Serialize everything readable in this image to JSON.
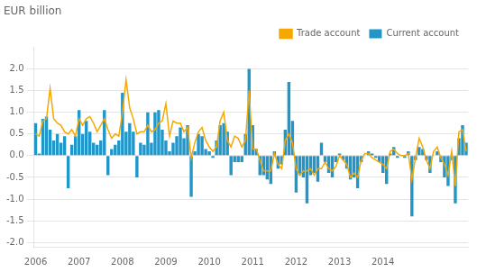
{
  "chart_data": {
    "type": "bar",
    "title": "EUR billion",
    "categories": [
      "2006",
      null,
      null,
      null,
      null,
      null,
      null,
      null,
      null,
      null,
      null,
      null,
      "2007",
      null,
      null,
      null,
      null,
      null,
      null,
      null,
      null,
      null,
      null,
      null,
      "2008",
      null,
      null,
      null,
      null,
      null,
      null,
      null,
      null,
      null,
      null,
      null,
      "2009",
      null,
      null,
      null,
      null,
      null,
      null,
      null,
      null,
      null,
      null,
      null,
      "2010",
      null,
      null,
      null,
      null,
      null,
      null,
      null,
      null,
      null,
      null,
      null,
      "2011",
      null,
      null,
      null,
      null,
      null,
      null,
      null,
      null,
      null,
      null,
      null,
      "2012",
      null,
      null,
      null,
      null,
      null,
      null,
      null,
      null,
      null,
      null,
      null,
      "2013",
      null,
      null,
      null,
      null,
      null,
      null,
      null,
      null,
      null,
      null,
      null,
      "2014",
      null,
      null,
      null,
      null,
      null,
      null,
      null,
      null,
      null,
      null,
      null,
      null,
      null,
      null,
      null,
      null,
      null,
      null,
      null,
      null,
      null,
      null,
      null
    ],
    "series": [
      {
        "name": "Current account",
        "type": "bar",
        "color": "#2196c8",
        "values": [
          0.75,
          0.05,
          0.85,
          0.9,
          0.6,
          0.35,
          0.5,
          0.3,
          0.45,
          -0.75,
          0.25,
          0.45,
          1.05,
          0.5,
          0.8,
          0.55,
          0.3,
          0.25,
          0.35,
          1.05,
          -0.45,
          0.15,
          0.25,
          0.35,
          1.45,
          0.55,
          0.75,
          0.55,
          -0.5,
          0.3,
          0.25,
          1.0,
          0.3,
          1.0,
          1.05,
          0.6,
          0.35,
          0.1,
          0.3,
          0.45,
          0.65,
          0.4,
          0.7,
          -0.95,
          0.1,
          0.5,
          0.45,
          0.15,
          0.1,
          -0.05,
          0.35,
          0.7,
          0.75,
          0.55,
          -0.45,
          -0.15,
          -0.15,
          -0.15,
          0.5,
          2.0,
          0.7,
          0.15,
          -0.45,
          -0.45,
          -0.55,
          -0.65,
          0.1,
          -0.3,
          -0.2,
          0.6,
          1.7,
          0.8,
          -0.85,
          -0.45,
          -0.5,
          -1.1,
          -0.45,
          -0.4,
          -0.6,
          0.3,
          -0.15,
          -0.4,
          -0.5,
          -0.15,
          0.05,
          -0.1,
          -0.3,
          -0.55,
          -0.5,
          -0.75,
          -0.15,
          0.0,
          0.1,
          0.05,
          -0.05,
          -0.15,
          -0.4,
          -0.65,
          0.05,
          0.2,
          -0.05,
          0.0,
          -0.05,
          0.1,
          -1.4,
          -0.1,
          0.2,
          0.15,
          -0.1,
          -0.4,
          0.0,
          0.1,
          -0.15,
          -0.5,
          -0.7,
          -0.1,
          -1.1,
          0.4,
          0.7,
          0.3
        ]
      },
      {
        "name": "Trade account",
        "type": "line",
        "color": "#f5a800",
        "values": [
          0.5,
          0.45,
          0.8,
          0.85,
          1.55,
          0.85,
          0.75,
          0.7,
          0.55,
          0.5,
          0.6,
          0.45,
          0.85,
          0.7,
          0.85,
          0.9,
          0.75,
          0.55,
          0.7,
          0.85,
          0.6,
          0.4,
          0.5,
          0.45,
          1.0,
          1.75,
          1.1,
          0.85,
          0.5,
          0.55,
          0.55,
          0.7,
          0.55,
          0.6,
          0.75,
          0.8,
          1.2,
          0.45,
          0.8,
          0.75,
          0.75,
          0.55,
          0.65,
          -0.05,
          0.3,
          0.55,
          0.65,
          0.35,
          0.2,
          0.1,
          0.2,
          0.8,
          1.0,
          0.35,
          0.2,
          0.45,
          0.4,
          0.2,
          0.35,
          1.5,
          0.15,
          0.15,
          -0.1,
          -0.35,
          -0.35,
          -0.35,
          0.05,
          -0.2,
          -0.3,
          0.35,
          0.5,
          0.3,
          -0.3,
          -0.45,
          -0.35,
          -0.35,
          -0.3,
          -0.45,
          -0.3,
          -0.3,
          -0.15,
          -0.3,
          -0.35,
          -0.25,
          0.0,
          -0.1,
          -0.2,
          -0.5,
          -0.4,
          -0.5,
          -0.1,
          0.05,
          0.05,
          -0.05,
          -0.1,
          -0.15,
          -0.2,
          -0.3,
          0.1,
          0.15,
          0.05,
          0.0,
          0.0,
          0.05,
          -0.55,
          -0.05,
          0.4,
          0.2,
          -0.1,
          -0.3,
          0.1,
          0.2,
          -0.05,
          -0.2,
          -0.45,
          0.1,
          -0.7,
          0.55,
          0.6,
          0.1
        ]
      }
    ],
    "ylim": [
      -2.1,
      2.5
    ],
    "yticks": [
      {
        "value": -2.0,
        "label": "-2.0"
      },
      -1.5,
      {
        "value": -1.0,
        "label": "-1.0"
      },
      -0.5,
      {
        "value": 0.0,
        "label": "0.0"
      },
      0.5,
      {
        "value": 1.0,
        "label": "1.0"
      },
      1.5,
      {
        "value": 2.0,
        "label": "2.0"
      }
    ],
    "grid": true,
    "legend": "upper right"
  }
}
